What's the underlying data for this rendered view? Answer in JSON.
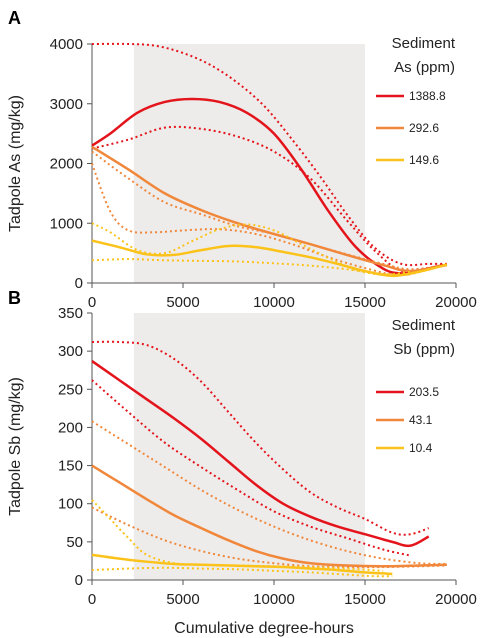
{
  "chart_data": [
    {
      "type": "line",
      "panel_label": "A",
      "ylabel": "Tadpole As (mg/kg)",
      "xlabel": "",
      "xlim": [
        0,
        20000
      ],
      "ylim": [
        0,
        4000
      ],
      "y_ticks": [
        "0",
        "1000",
        "2000",
        "3000",
        "4000"
      ],
      "x_ticks": [
        "0",
        "5000",
        "10000",
        "15000",
        "20000"
      ],
      "shaded_region": [
        2300,
        15000
      ],
      "legend": {
        "title_line1": "Sediment",
        "title_line2": "As (ppm)",
        "entries": [
          {
            "label": "1388.8",
            "color": "#e3141b"
          },
          {
            "label": "292.6",
            "color": "#f0873a"
          },
          {
            "label": "149.6",
            "color": "#fbc21a"
          }
        ]
      },
      "series": [
        {
          "name": "1388.8",
          "color": "#e3141b",
          "x": [
            0,
            1000,
            2500,
            4000,
            5500,
            7000,
            8500,
            10000,
            11500,
            13000,
            14500,
            16000,
            17000,
            18000,
            19300
          ],
          "y": [
            2300,
            2500,
            2850,
            3030,
            3080,
            3030,
            2850,
            2500,
            1900,
            1200,
            600,
            240,
            160,
            210,
            300
          ],
          "lower_x": [
            0,
            2000,
            4000,
            6000,
            8000,
            10000,
            12000,
            14000,
            15500,
            17000,
            18500,
            19500
          ],
          "lower_y": [
            2250,
            2400,
            2600,
            2580,
            2450,
            2200,
            1750,
            1050,
            550,
            200,
            250,
            300
          ],
          "upper_x": [
            0,
            2000,
            3500,
            5000,
            6500,
            8000,
            9500,
            11000,
            12500,
            14000,
            15500,
            17000,
            18500,
            19500
          ],
          "upper_y": [
            4000,
            4000,
            3970,
            3850,
            3650,
            3350,
            2950,
            2400,
            1800,
            1150,
            600,
            320,
            320,
            320
          ]
        },
        {
          "name": "292.6",
          "color": "#f0873a",
          "x": [
            0,
            2000,
            4000,
            6000,
            8000,
            10000,
            12000,
            14000,
            16000,
            17500,
            19500
          ],
          "y": [
            2280,
            1900,
            1500,
            1220,
            1000,
            820,
            650,
            470,
            300,
            200,
            300
          ],
          "lower_x": [
            0,
            1000,
            2000,
            3500,
            5000,
            7000,
            9000,
            11000,
            13000,
            15000,
            17000,
            19000
          ],
          "lower_y": [
            2000,
            1200,
            880,
            850,
            880,
            900,
            820,
            650,
            430,
            250,
            130,
            280
          ],
          "upper_x": [
            0,
            2000,
            4000,
            6000,
            8000,
            10000,
            12000,
            14000,
            16000,
            17500,
            19500
          ],
          "upper_y": [
            2200,
            1750,
            1350,
            1150,
            950,
            820,
            650,
            480,
            320,
            230,
            300
          ]
        },
        {
          "name": "149.6",
          "color": "#fbc21a",
          "x": [
            0,
            1500,
            3000,
            4500,
            6000,
            7500,
            9000,
            10500,
            12000,
            13500,
            15000,
            16500,
            18000,
            19500
          ],
          "y": [
            710,
            600,
            480,
            470,
            550,
            620,
            600,
            520,
            430,
            320,
            200,
            120,
            190,
            310
          ],
          "lower_x": [
            0,
            2000,
            4000,
            6000,
            8000,
            10000,
            12000,
            14000,
            16000,
            17500
          ],
          "lower_y": [
            380,
            400,
            380,
            370,
            360,
            330,
            290,
            230,
            150,
            140
          ],
          "upper_x": [
            0,
            1000,
            2500,
            4000,
            5500,
            7000,
            8500,
            10000,
            11500,
            13000,
            14500,
            16000,
            17500
          ],
          "upper_y": [
            1000,
            850,
            550,
            500,
            700,
            900,
            980,
            880,
            650,
            420,
            220,
            140,
            190
          ]
        }
      ]
    },
    {
      "type": "line",
      "panel_label": "B",
      "ylabel": "Tadpole Sb (mg/kg)",
      "xlabel": "Cumulative degree-hours",
      "xlim": [
        0,
        20000
      ],
      "ylim": [
        0,
        350
      ],
      "y_ticks": [
        "0",
        "50",
        "100",
        "150",
        "200",
        "250",
        "300",
        "350"
      ],
      "x_ticks": [
        "0",
        "5000",
        "10000",
        "15000",
        "20000"
      ],
      "shaded_region": [
        2300,
        15000
      ],
      "legend": {
        "title_line1": "Sediment",
        "title_line2": "Sb (ppm)",
        "entries": [
          {
            "label": "203.5",
            "color": "#e3141b"
          },
          {
            "label": "43.1",
            "color": "#f0873a"
          },
          {
            "label": "10.4",
            "color": "#fbc21a"
          }
        ]
      },
      "series": [
        {
          "name": "203.5",
          "color": "#e3141b",
          "x": [
            0,
            1500,
            3000,
            4500,
            6000,
            7500,
            9000,
            10500,
            12000,
            13500,
            15000,
            16500,
            17500,
            18500
          ],
          "y": [
            287,
            262,
            237,
            212,
            185,
            155,
            125,
            100,
            83,
            70,
            60,
            50,
            45,
            57
          ],
          "lower_x": [
            0,
            2000,
            4000,
            6000,
            8000,
            10000,
            12000,
            14000,
            16000,
            17500
          ],
          "lower_y": [
            262,
            220,
            180,
            148,
            118,
            90,
            70,
            55,
            40,
            32
          ],
          "upper_x": [
            0,
            1500,
            3000,
            4500,
            6000,
            7500,
            9000,
            10500,
            12000,
            13500,
            15000,
            16500,
            17500,
            18500
          ],
          "upper_y": [
            312,
            312,
            308,
            290,
            260,
            220,
            180,
            145,
            115,
            95,
            80,
            62,
            60,
            68
          ]
        },
        {
          "name": "43.1",
          "color": "#f0873a",
          "x": [
            0,
            1500,
            3000,
            4500,
            6000,
            7500,
            9000,
            10500,
            12000,
            14000,
            16000,
            18000,
            19500
          ],
          "y": [
            150,
            128,
            106,
            85,
            68,
            52,
            38,
            28,
            22,
            19,
            18,
            19,
            20
          ],
          "lower_x": [
            0,
            2000,
            4000,
            6000,
            8000,
            10000,
            12000,
            14000,
            16000,
            18000,
            19500
          ],
          "lower_y": [
            95,
            72,
            52,
            38,
            28,
            22,
            18,
            17,
            17,
            18,
            19
          ],
          "upper_x": [
            0,
            2000,
            4000,
            6000,
            8000,
            10000,
            12000,
            14000,
            16000,
            18000,
            19500
          ],
          "upper_y": [
            208,
            178,
            148,
            118,
            92,
            70,
            52,
            38,
            28,
            22,
            21
          ]
        },
        {
          "name": "10.4",
          "color": "#fbc21a",
          "x": [
            0,
            1500,
            3000,
            4500,
            6000,
            7500,
            9000,
            10500,
            12000,
            13500,
            15000,
            16500
          ],
          "y": [
            33,
            28,
            24,
            21,
            20,
            19,
            18,
            17,
            15,
            13,
            10,
            8
          ],
          "lower_x": [
            0,
            2000,
            4000,
            6000,
            8000,
            10000,
            12000,
            14000,
            15500,
            16500
          ],
          "lower_y": [
            13,
            15,
            16,
            15,
            14,
            12,
            10,
            7,
            5,
            5
          ],
          "upper_x": [
            0,
            1000,
            2000,
            3000,
            4500,
            6000,
            8000,
            10000,
            12000,
            14000,
            16000
          ],
          "upper_y": [
            105,
            80,
            55,
            33,
            22,
            20,
            19,
            18,
            17,
            15,
            12
          ]
        }
      ]
    }
  ]
}
